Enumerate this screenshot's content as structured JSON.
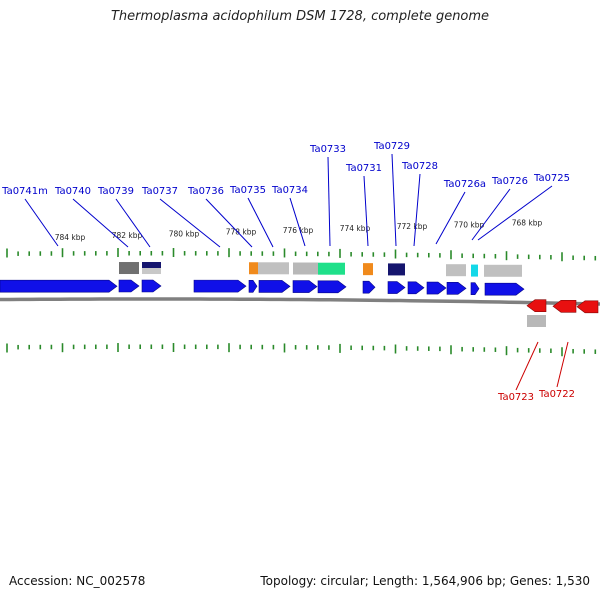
{
  "title": "Thermoplasma acidophilum DSM 1728, complete genome",
  "footer": {
    "accession": "Accession: NC_002578",
    "summary": "Topology: circular; Length: 1,564,906 bp; Genes: 1,530"
  },
  "colors": {
    "forward_gene": "#1010e8",
    "reverse_gene": "#e81010",
    "backbone": "#808080",
    "tick": "#2a8a2a",
    "forward_label": "#0000cc",
    "reverse_label": "#cc0000"
  },
  "ruler": [
    {
      "label": "784 kbp"
    },
    {
      "label": "782 kbp"
    },
    {
      "label": "780 kbp"
    },
    {
      "label": "778 kbp"
    },
    {
      "label": "776 kbp"
    },
    {
      "label": "774 kbp"
    },
    {
      "label": "772 kbp"
    },
    {
      "label": "770 kbp"
    },
    {
      "label": "768 kbp"
    }
  ],
  "forward_genes": [
    {
      "label": "Ta0741m"
    },
    {
      "label": "Ta0740"
    },
    {
      "label": "Ta0739"
    },
    {
      "label": "Ta0737"
    },
    {
      "label": "Ta0736"
    },
    {
      "label": "Ta0735"
    },
    {
      "label": "Ta0734"
    },
    {
      "label": "Ta0733"
    },
    {
      "label": "Ta0731"
    },
    {
      "label": "Ta0729"
    },
    {
      "label": "Ta0728"
    },
    {
      "label": "Ta0726a"
    },
    {
      "label": "Ta0726"
    },
    {
      "label": "Ta0725"
    }
  ],
  "reverse_genes": [
    {
      "label": "Ta0723"
    },
    {
      "label": "Ta0722"
    }
  ]
}
